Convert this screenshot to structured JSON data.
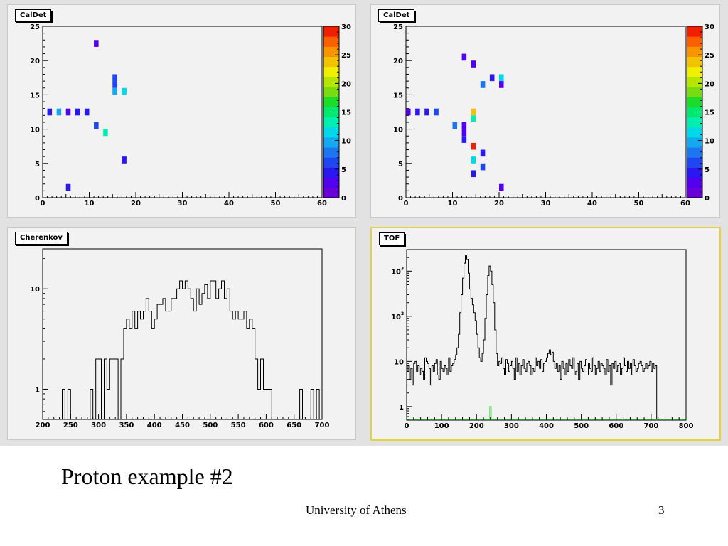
{
  "slide": {
    "title": "Proton example #2",
    "footer_center": "University of Athens",
    "page_number": "3"
  },
  "chart_data": [
    {
      "id": "caldet-1",
      "pad_title": "CalDet",
      "type": "heatmap",
      "xlim": [
        0,
        60
      ],
      "ylim": [
        0,
        25
      ],
      "xticks": [
        0,
        10,
        20,
        30,
        40,
        50,
        60
      ],
      "yticks": [
        0,
        5,
        10,
        15,
        20,
        25
      ],
      "z_range": [
        0,
        30
      ],
      "z_ticks": [
        0,
        5,
        10,
        15,
        20,
        25,
        30
      ],
      "palette": [
        "#6a00d8",
        "#5200ee",
        "#2a18f0",
        "#1f46f0",
        "#1d75f0",
        "#14a8f0",
        "#00d8e8",
        "#00eeb0",
        "#00e870",
        "#1cdc28",
        "#78dc10",
        "#b6e600",
        "#eef000",
        "#f2c400",
        "#f89400",
        "#f86000",
        "#ee2000"
      ],
      "cells": [
        {
          "x": 11,
          "y": 22,
          "z": 2
        },
        {
          "x": 15,
          "y": 17,
          "z": 6
        },
        {
          "x": 15,
          "y": 16,
          "z": 7
        },
        {
          "x": 15,
          "y": 15,
          "z": 9
        },
        {
          "x": 17,
          "y": 15,
          "z": 11
        },
        {
          "x": 1,
          "y": 12,
          "z": 5
        },
        {
          "x": 3,
          "y": 12,
          "z": 10
        },
        {
          "x": 5,
          "y": 12,
          "z": 3
        },
        {
          "x": 7,
          "y": 12,
          "z": 5
        },
        {
          "x": 9,
          "y": 12,
          "z": 5
        },
        {
          "x": 11,
          "y": 10,
          "z": 7
        },
        {
          "x": 13,
          "y": 9,
          "z": 14
        },
        {
          "x": 17,
          "y": 5,
          "z": 4
        },
        {
          "x": 5,
          "y": 1,
          "z": 4
        }
      ]
    },
    {
      "id": "caldet-2",
      "pad_title": "CalDet",
      "type": "heatmap",
      "xlim": [
        0,
        60
      ],
      "ylim": [
        0,
        25
      ],
      "xticks": [
        0,
        10,
        20,
        30,
        40,
        50,
        60
      ],
      "yticks": [
        0,
        5,
        10,
        15,
        20,
        25
      ],
      "z_range": [
        0,
        30
      ],
      "z_ticks": [
        0,
        5,
        10,
        15,
        20,
        25,
        30
      ],
      "palette": [
        "#6a00d8",
        "#5200ee",
        "#2a18f0",
        "#1f46f0",
        "#1d75f0",
        "#14a8f0",
        "#00d8e8",
        "#00eeb0",
        "#00e870",
        "#1cdc28",
        "#78dc10",
        "#b6e600",
        "#eef000",
        "#f2c400",
        "#f89400",
        "#f86000",
        "#ee2000"
      ],
      "cells": [
        {
          "x": 12,
          "y": 20,
          "z": 2
        },
        {
          "x": 14,
          "y": 19,
          "z": 3
        },
        {
          "x": 18,
          "y": 17,
          "z": 5
        },
        {
          "x": 20,
          "y": 17,
          "z": 11
        },
        {
          "x": 16,
          "y": 16,
          "z": 8
        },
        {
          "x": 20,
          "y": 16,
          "z": 3
        },
        {
          "x": 0,
          "y": 12,
          "z": 3
        },
        {
          "x": 2,
          "y": 12,
          "z": 4
        },
        {
          "x": 4,
          "y": 12,
          "z": 4
        },
        {
          "x": 6,
          "y": 12,
          "z": 6
        },
        {
          "x": 14,
          "y": 12,
          "z": 24
        },
        {
          "x": 14,
          "y": 11,
          "z": 14
        },
        {
          "x": 10,
          "y": 10,
          "z": 8
        },
        {
          "x": 12,
          "y": 10,
          "z": 2
        },
        {
          "x": 12,
          "y": 9,
          "z": 3
        },
        {
          "x": 12,
          "y": 8,
          "z": 4
        },
        {
          "x": 14,
          "y": 7,
          "z": 29
        },
        {
          "x": 16,
          "y": 6,
          "z": 4
        },
        {
          "x": 14,
          "y": 5,
          "z": 11
        },
        {
          "x": 16,
          "y": 4,
          "z": 6
        },
        {
          "x": 14,
          "y": 3,
          "z": 5
        },
        {
          "x": 20,
          "y": 1,
          "z": 2
        }
      ]
    },
    {
      "id": "cherenkov",
      "pad_title": "Cherenkov",
      "type": "line",
      "log_y": true,
      "xlim": [
        200,
        700
      ],
      "ylim": [
        0.5,
        25
      ],
      "xticks": [
        200,
        250,
        300,
        350,
        400,
        450,
        500,
        550,
        600,
        650,
        700
      ],
      "ytick_labels": [
        {
          "v": 1,
          "t": "1"
        },
        {
          "v": 10,
          "t": "10"
        }
      ],
      "bin_width": 5,
      "bins_start": 200,
      "values": [
        0,
        0,
        0,
        0,
        0,
        0,
        0,
        1,
        0,
        1,
        0,
        0,
        0,
        0,
        0,
        0,
        0,
        1,
        0,
        2,
        2,
        0,
        2,
        1,
        2,
        2,
        2,
        0,
        2,
        4,
        5,
        4,
        6,
        4,
        6,
        5,
        6,
        8,
        6,
        4,
        5,
        7,
        7,
        8,
        6,
        6,
        8,
        8,
        10,
        12,
        10,
        12,
        10,
        8,
        6,
        10,
        7,
        9,
        11,
        8,
        12,
        12,
        8,
        10,
        12,
        8,
        10,
        6,
        5,
        6,
        5,
        5,
        6,
        4,
        5,
        4,
        2,
        1,
        2,
        1,
        1,
        1,
        0,
        0,
        0,
        0,
        0,
        0,
        0,
        0,
        0,
        0,
        1,
        0,
        0,
        0,
        1,
        0,
        1,
        0
      ]
    },
    {
      "id": "tof",
      "pad_title": "TOF",
      "type": "line",
      "log_y": true,
      "xlim": [
        0,
        800
      ],
      "ylim": [
        0.5,
        3000
      ],
      "xticks": [
        0,
        100,
        200,
        300,
        400,
        500,
        600,
        700,
        800
      ],
      "ytick_labels": [
        {
          "v": 1,
          "t": "1"
        },
        {
          "v": 10,
          "t": "10"
        },
        {
          "v": 100,
          "t": "10",
          "e": "2"
        },
        {
          "v": 1000,
          "t": "10",
          "e": "3"
        }
      ],
      "bin_width": 4,
      "bins_start": 0,
      "values": [
        6,
        8,
        4,
        7,
        3,
        9,
        10,
        6,
        8,
        5,
        7,
        6,
        4,
        12,
        10,
        9,
        7,
        3,
        8,
        6,
        9,
        11,
        5,
        4,
        10,
        7,
        6,
        8,
        7,
        5,
        12,
        6,
        8,
        9,
        11,
        14,
        20,
        40,
        120,
        300,
        700,
        1500,
        2200,
        1800,
        900,
        400,
        250,
        180,
        120,
        80,
        40,
        20,
        12,
        10,
        15,
        30,
        90,
        300,
        800,
        1300,
        1000,
        500,
        200,
        50,
        15,
        8,
        10,
        9,
        12,
        7,
        5,
        11,
        9,
        6,
        8,
        10,
        7,
        4,
        12,
        6,
        9,
        5,
        8,
        11,
        7,
        6,
        9,
        10,
        8,
        5,
        7,
        6,
        12,
        8,
        10,
        7,
        11,
        6,
        9,
        10,
        12,
        15,
        18,
        14,
        16,
        10,
        7,
        9,
        6,
        8,
        4,
        10,
        7,
        5,
        9,
        6,
        11,
        8,
        7,
        12,
        5,
        6,
        9,
        4,
        10,
        7,
        6,
        8,
        11,
        5,
        9,
        7,
        6,
        12,
        8,
        5,
        7,
        10,
        6,
        9,
        8,
        7,
        5,
        11,
        6,
        8,
        3,
        9,
        7,
        10,
        6,
        8,
        9,
        5,
        7,
        12,
        8,
        6,
        10,
        7,
        9,
        5,
        11,
        8,
        6,
        7,
        9,
        10,
        8,
        6,
        7,
        9,
        7,
        8,
        10,
        6,
        9,
        7,
        8
      ],
      "green_spike": {
        "x": 238,
        "value": 1
      }
    }
  ]
}
